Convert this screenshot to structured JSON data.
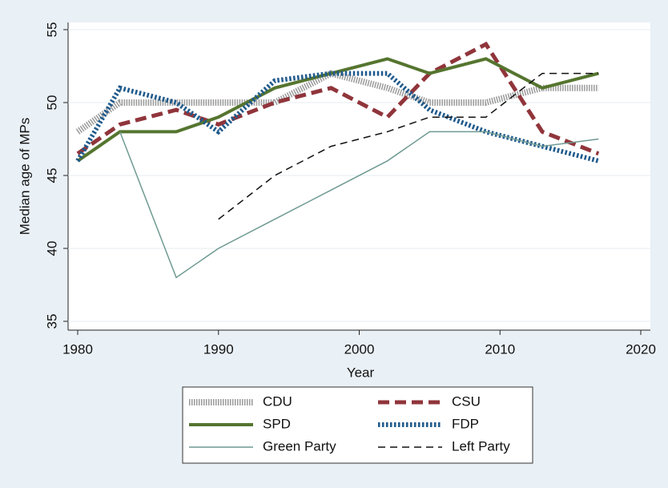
{
  "chart_data": {
    "type": "line",
    "x_label": "Year",
    "y_label": "Median age of MPs",
    "x": [
      1980,
      1983,
      1987,
      1990,
      1994,
      1998,
      2002,
      2005,
      2009,
      2013,
      2017
    ],
    "series": [
      {
        "name": "CDU",
        "color": "#9a9a9a",
        "values": [
          48,
          50,
          50,
          50,
          50,
          52,
          51,
          50,
          50,
          51,
          51
        ]
      },
      {
        "name": "CSU",
        "color": "#90353b",
        "values": [
          46.5,
          48.5,
          49.5,
          48.5,
          50,
          51,
          49,
          52,
          54,
          48,
          46.5
        ]
      },
      {
        "name": "SPD",
        "color": "#55752f",
        "values": [
          46,
          48,
          48,
          49,
          51,
          52,
          53,
          52,
          53,
          51,
          52
        ]
      },
      {
        "name": "FDP",
        "color": "#1f5a8c",
        "values": [
          46,
          51,
          50,
          48,
          51.5,
          52,
          52,
          49.5,
          48,
          47,
          46
        ]
      },
      {
        "name": "Green Party",
        "color": "#6f9a92",
        "values": [
          null,
          48,
          38,
          40,
          42,
          44,
          46,
          48,
          48,
          47,
          47.5
        ]
      },
      {
        "name": "Left Party",
        "color": "#111111",
        "values": [
          null,
          null,
          null,
          42,
          45,
          47,
          48,
          49,
          49,
          52,
          52
        ]
      }
    ],
    "xlim": [
      1980,
      2020
    ],
    "xticks": [
      1980,
      1990,
      2000,
      2010,
      2020
    ],
    "ylim": [
      35,
      55
    ],
    "yticks": [
      35,
      40,
      45,
      50,
      55
    ],
    "grid": true
  }
}
